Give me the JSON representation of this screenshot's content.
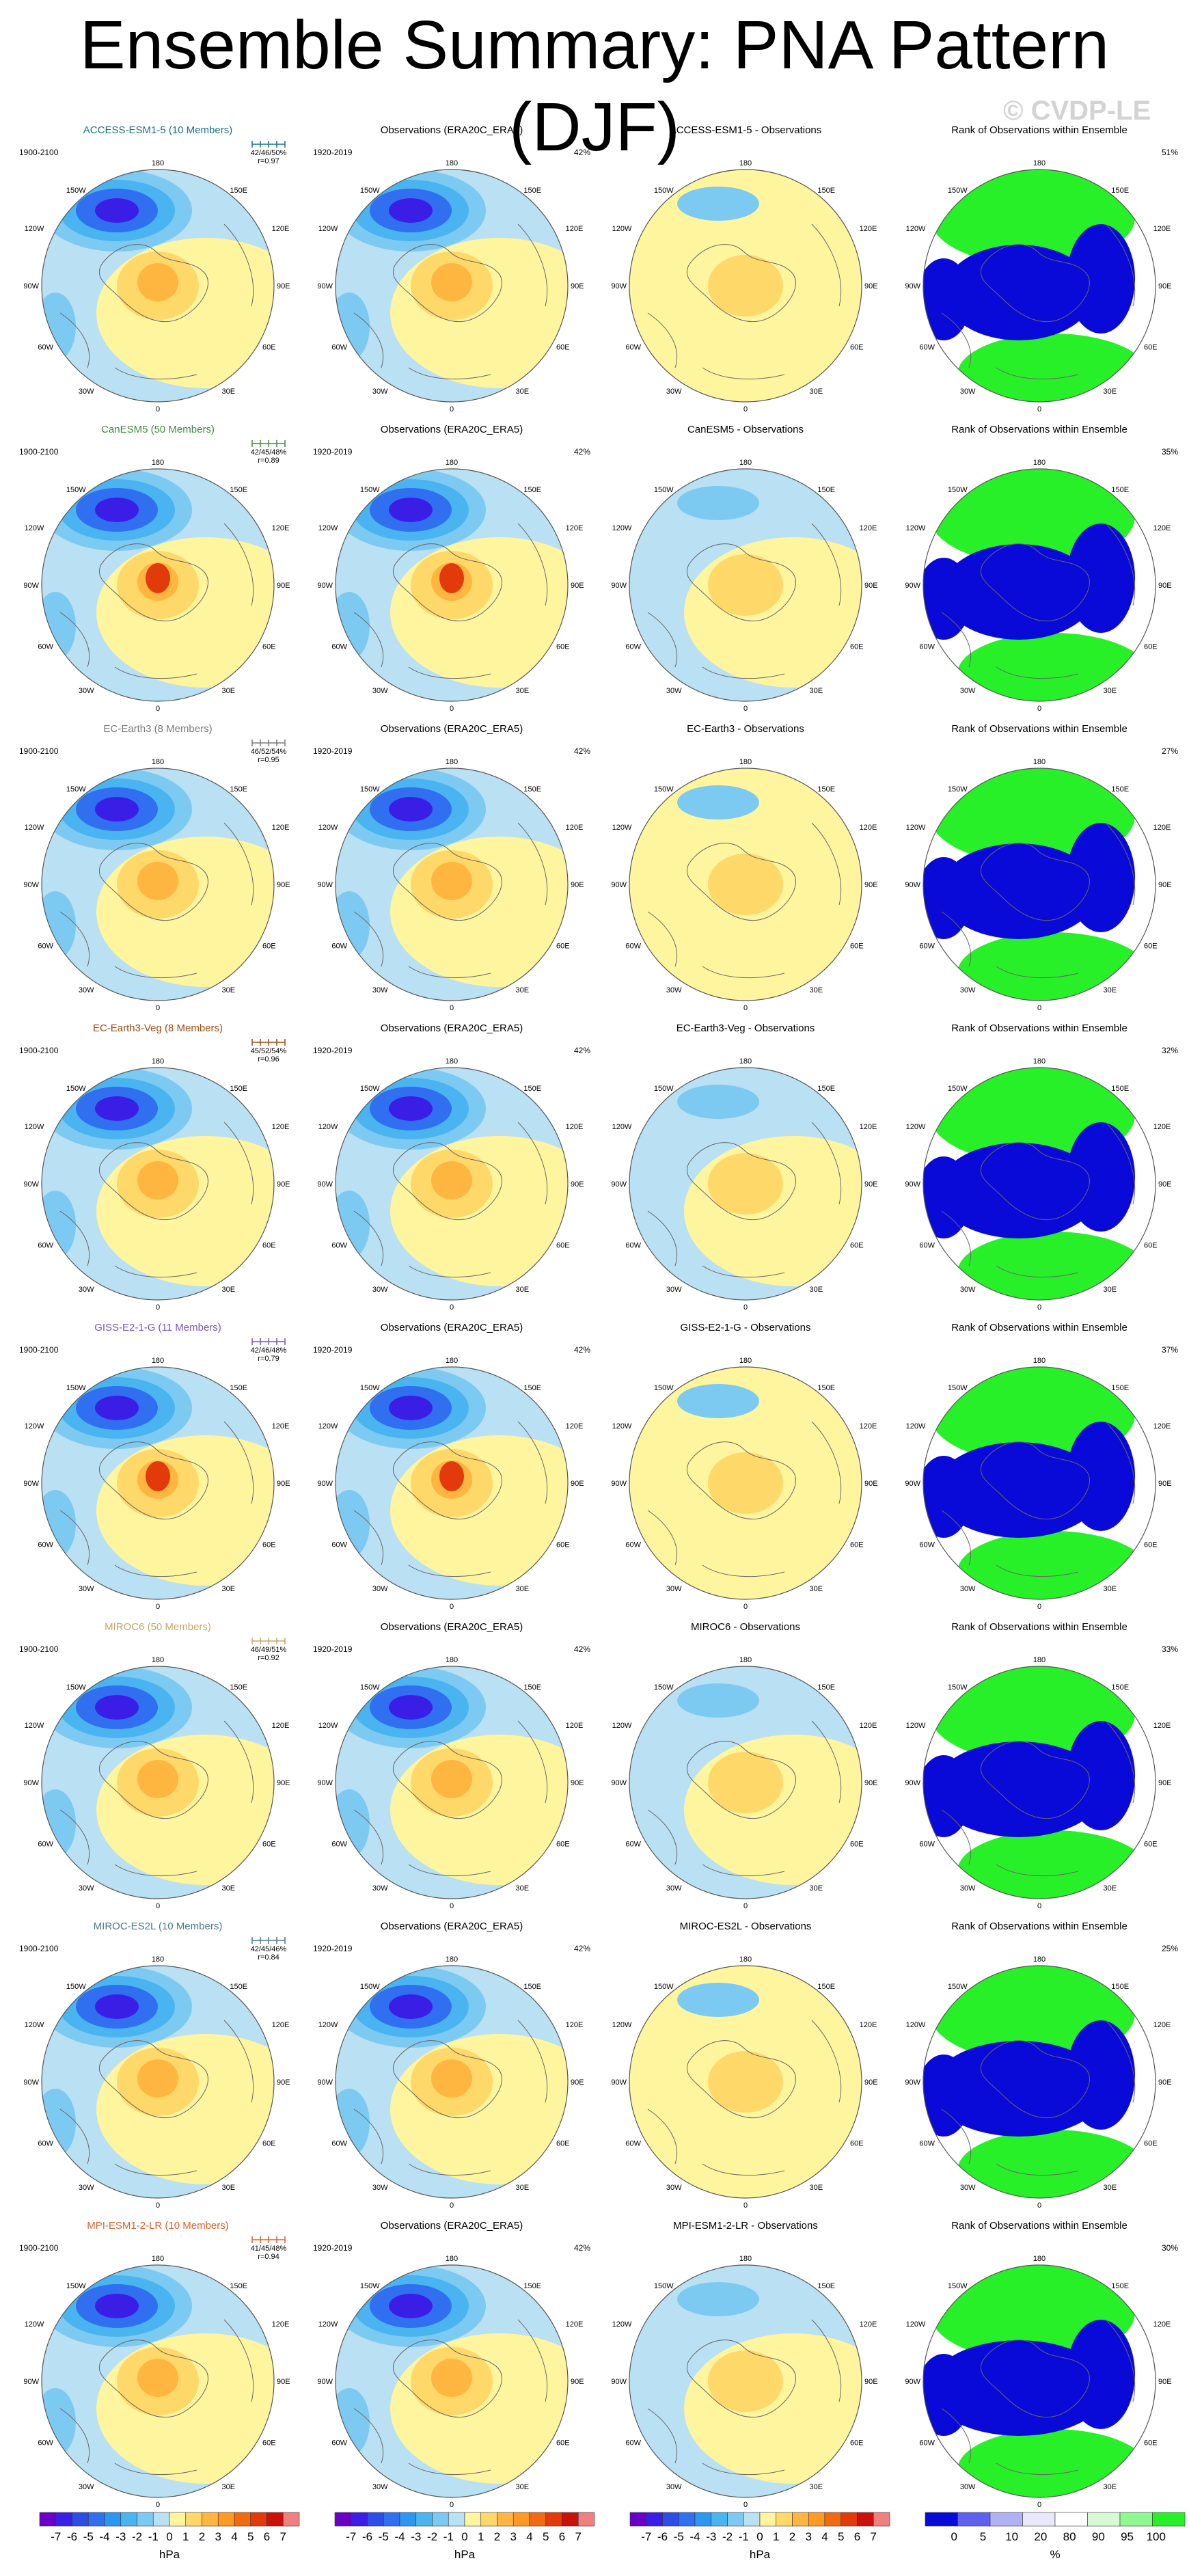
{
  "title": "Ensemble Summary: PNA Pattern (DJF)",
  "watermark": "© CVDP-LE",
  "obs_title": "Observations (ERA20C_ERA5)",
  "obs_period": "1920-2019",
  "obs_pct": "42%",
  "rank_title": "Rank of Observations within Ensemble",
  "map_labels": {
    "lon180": "180",
    "w150": "150W",
    "e150": "150E",
    "w120": "120W",
    "e120": "120E",
    "w90": "90W",
    "e90": "90E",
    "w60": "60W",
    "e60": "60E",
    "w30": "30W",
    "e30": "30E",
    "lon0": "0"
  },
  "rows": [
    {
      "model": "ACCESS-ESM1-5 (10 Members)",
      "color": "#1b6f8a",
      "period": "1900-2100",
      "stats": "42/46/50%",
      "r": "r=0.97",
      "diff_title": "ACCESS-ESM1-5 - Observations",
      "rank_pct": "51%"
    },
    {
      "model": "CanESM5 (50 Members)",
      "color": "#3e8a3e",
      "period": "1900-2100",
      "stats": "42/45/48%",
      "r": "r=0.89",
      "diff_title": "CanESM5 - Observations",
      "rank_pct": "35%"
    },
    {
      "model": "EC-Earth3 (8 Members)",
      "color": "#7a7a7a",
      "period": "1900-2100",
      "stats": "46/52/54%",
      "r": "r=0.95",
      "diff_title": "EC-Earth3 - Observations",
      "rank_pct": "27%"
    },
    {
      "model": "EC-Earth3-Veg (8 Members)",
      "color": "#a04a12",
      "period": "1900-2100",
      "stats": "45/52/54%",
      "r": "r=0.96",
      "diff_title": "EC-Earth3-Veg - Observations",
      "rank_pct": "32%"
    },
    {
      "model": "GISS-E2-1-G (11 Members)",
      "color": "#7b52c8",
      "period": "1900-2100",
      "stats": "42/46/48%",
      "r": "r=0.79",
      "diff_title": "GISS-E2-1-G - Observations",
      "rank_pct": "37%"
    },
    {
      "model": "MIROC6 (50 Members)",
      "color": "#c9a36a",
      "period": "1900-2100",
      "stats": "46/49/51%",
      "r": "r=0.92",
      "diff_title": "MIROC6 - Observations",
      "rank_pct": "33%"
    },
    {
      "model": "MIROC-ES2L (10 Members)",
      "color": "#4a7a8a",
      "period": "1900-2100",
      "stats": "42/45/46%",
      "r": "r=0.84",
      "diff_title": "MIROC-ES2L - Observations",
      "rank_pct": "25%"
    },
    {
      "model": "MPI-ESM1-2-LR (10 Members)",
      "color": "#e0602a",
      "period": "1900-2100",
      "stats": "41/45/48%",
      "r": "r=0.94",
      "diff_title": "MPI-ESM1-2-LR - Observations",
      "rank_pct": "30%"
    }
  ],
  "colorbar": {
    "units": "hPa",
    "labels": [
      "-7",
      "-6",
      "-5",
      "-4",
      "-3",
      "-2",
      "-1",
      "0",
      "1",
      "2",
      "3",
      "4",
      "5",
      "6",
      "7"
    ],
    "colors": [
      "#6a00c8",
      "#3a1ee6",
      "#2e4ce8",
      "#2f6ff0",
      "#2c97f0",
      "#4ab4f0",
      "#7ccaf2",
      "#b9e0f3",
      "#fff59e",
      "#ffd86a",
      "#ffb640",
      "#ff9a24",
      "#f26a12",
      "#e23a0a",
      "#c8120a",
      "#f08080"
    ]
  },
  "rank_colorbar": {
    "units": "%",
    "labels": [
      "0",
      "5",
      "10",
      "20",
      "80",
      "90",
      "95",
      "100"
    ],
    "colors": [
      "#0a0ad8",
      "#6060f0",
      "#b0b0f5",
      "#e8e8fb",
      "#ffffff",
      "#d8f8d8",
      "#90f890",
      "#28f028"
    ]
  }
}
